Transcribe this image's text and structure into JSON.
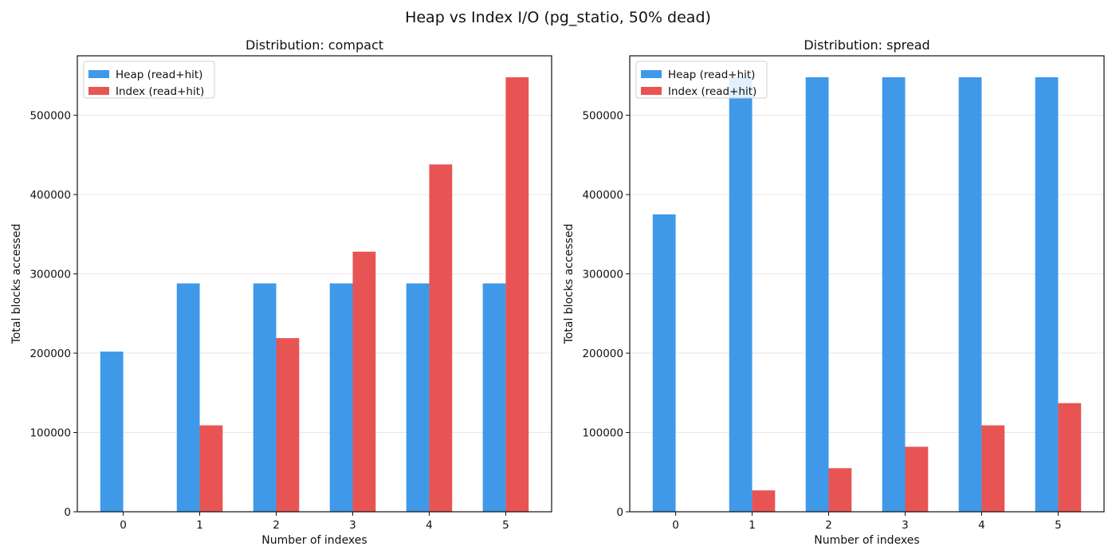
{
  "figure": {
    "title": "Heap vs Index I/O (pg_statio, 50% dead)"
  },
  "colors": {
    "heap": "#3f99e8",
    "index": "#e85454",
    "grid": "#e6e6e6",
    "axis": "#111111",
    "legend_border": "#d0d0d0"
  },
  "chart_data": [
    {
      "type": "bar",
      "title": "Distribution: compact",
      "xlabel": "Number of indexes",
      "ylabel": "Total blocks accessed",
      "categories": [
        "0",
        "1",
        "2",
        "3",
        "4",
        "5"
      ],
      "ylim": [
        0,
        575000
      ],
      "yticks": [
        0,
        100000,
        200000,
        300000,
        400000,
        500000
      ],
      "grid": "y",
      "legend_position": "top-left",
      "series": [
        {
          "name": "Heap (read+hit)",
          "values": [
            202000,
            288000,
            288000,
            288000,
            288000,
            288000
          ]
        },
        {
          "name": "Index (read+hit)",
          "values": [
            0,
            109000,
            219000,
            328000,
            438000,
            548000
          ]
        }
      ]
    },
    {
      "type": "bar",
      "title": "Distribution: spread",
      "xlabel": "Number of indexes",
      "ylabel": "Total blocks accessed",
      "categories": [
        "0",
        "1",
        "2",
        "3",
        "4",
        "5"
      ],
      "ylim": [
        0,
        575000
      ],
      "yticks": [
        0,
        100000,
        200000,
        300000,
        400000,
        500000
      ],
      "grid": "y",
      "legend_position": "top-left",
      "series": [
        {
          "name": "Heap (read+hit)",
          "values": [
            375000,
            548000,
            548000,
            548000,
            548000,
            548000
          ]
        },
        {
          "name": "Index (read+hit)",
          "values": [
            0,
            27000,
            55000,
            82000,
            109000,
            137000
          ]
        }
      ]
    }
  ]
}
